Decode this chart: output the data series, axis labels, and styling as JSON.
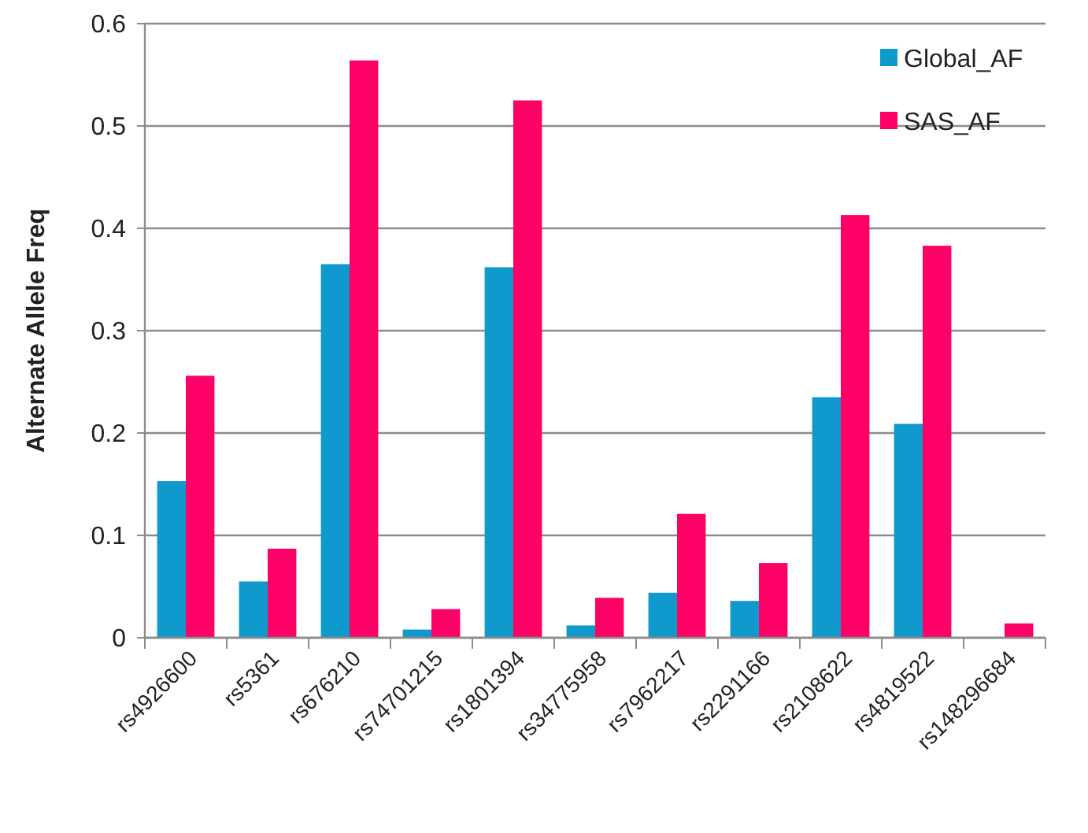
{
  "chart_data": {
    "type": "bar",
    "ylabel": "Alternate Allele Freq",
    "categories": [
      "rs4926600",
      "rs5361",
      "rs676210",
      "rs74701215",
      "rs1801394",
      "rs34775958",
      "rs7962217",
      "rs2291166",
      "rs2108622",
      "rs4819522",
      "rs148296684"
    ],
    "series": [
      {
        "name": "Global_AF",
        "color": "#0f99cc",
        "values": [
          0.153,
          0.055,
          0.365,
          0.008,
          0.362,
          0.012,
          0.044,
          0.036,
          0.235,
          0.209,
          0
        ]
      },
      {
        "name": "SAS_AF",
        "color": "#ff0066",
        "values": [
          0.256,
          0.087,
          0.564,
          0.028,
          0.525,
          0.039,
          0.121,
          0.073,
          0.413,
          0.383,
          0.014
        ]
      }
    ],
    "ylim": [
      0,
      0.6
    ],
    "yticks": [
      0,
      0.1,
      0.2,
      0.3,
      0.4,
      0.5,
      0.6
    ],
    "grid": "y",
    "legend": "top right"
  }
}
